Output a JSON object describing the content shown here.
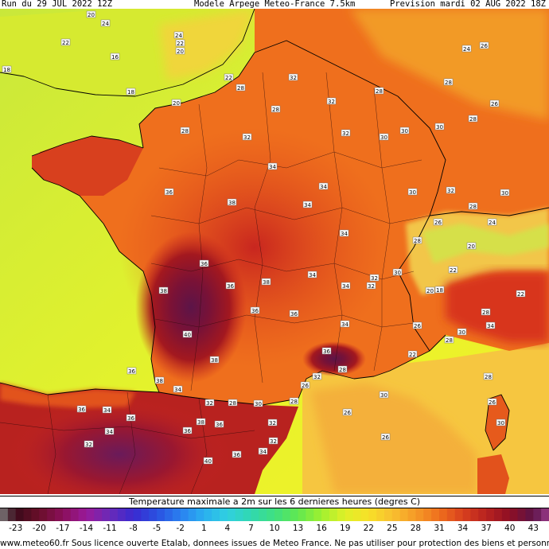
{
  "header": {
    "run": "Run du 29 JUL 2022 12Z",
    "model": "Modele Arpege Meteo-France 7.5km",
    "forecast": "Prevision mardi 02 AUG 2022 18Z"
  },
  "map": {
    "field": "temperature",
    "colors": {
      "sea": "#e8f428",
      "coast_sea": "#ccea3a",
      "warm_sea": "#f6c640",
      "land_mid": "#ef6f1d",
      "land_hot": "#c8261f",
      "land_very_hot": "#8e0f24",
      "land_extreme": "#5c1448",
      "land_cool": "#f29a26",
      "borders": "#000000"
    },
    "labels": [
      {
        "text": "20"
      },
      {
        "text": "24"
      },
      {
        "text": "22"
      },
      {
        "text": "16"
      },
      {
        "text": "18"
      },
      {
        "text": "24"
      },
      {
        "text": "22"
      },
      {
        "text": "20"
      },
      {
        "text": "24"
      },
      {
        "text": "26"
      },
      {
        "text": "22"
      },
      {
        "text": "28"
      },
      {
        "text": "18"
      },
      {
        "text": "28"
      },
      {
        "text": "20"
      },
      {
        "text": "28"
      },
      {
        "text": "28"
      },
      {
        "text": "32"
      },
      {
        "text": "32"
      },
      {
        "text": "26"
      },
      {
        "text": "28"
      },
      {
        "text": "30"
      },
      {
        "text": "30"
      },
      {
        "text": "28"
      },
      {
        "text": "32"
      },
      {
        "text": "32"
      },
      {
        "text": "30"
      },
      {
        "text": "34"
      },
      {
        "text": "34"
      },
      {
        "text": "36"
      },
      {
        "text": "38"
      },
      {
        "text": "34"
      },
      {
        "text": "34"
      },
      {
        "text": "30"
      },
      {
        "text": "32"
      },
      {
        "text": "30"
      },
      {
        "text": "28"
      },
      {
        "text": "26"
      },
      {
        "text": "24"
      },
      {
        "text": "36"
      },
      {
        "text": "36"
      },
      {
        "text": "38"
      },
      {
        "text": "36"
      },
      {
        "text": "34"
      },
      {
        "text": "34"
      },
      {
        "text": "32"
      },
      {
        "text": "30"
      },
      {
        "text": "20"
      },
      {
        "text": "22"
      },
      {
        "text": "18"
      },
      {
        "text": "40"
      },
      {
        "text": "38"
      },
      {
        "text": "38"
      },
      {
        "text": "36"
      },
      {
        "text": "36"
      },
      {
        "text": "34"
      },
      {
        "text": "32"
      },
      {
        "text": "28"
      },
      {
        "text": "26"
      },
      {
        "text": "22"
      },
      {
        "text": "20"
      },
      {
        "text": "28"
      },
      {
        "text": "28"
      },
      {
        "text": "30"
      },
      {
        "text": "34"
      },
      {
        "text": "36"
      },
      {
        "text": "38"
      },
      {
        "text": "34"
      },
      {
        "text": "32"
      },
      {
        "text": "28"
      },
      {
        "text": "30"
      },
      {
        "text": "32"
      },
      {
        "text": "28"
      },
      {
        "text": "26"
      },
      {
        "text": "32"
      },
      {
        "text": "36"
      },
      {
        "text": "34"
      },
      {
        "text": "36"
      },
      {
        "text": "34"
      },
      {
        "text": "32"
      },
      {
        "text": "38"
      },
      {
        "text": "36"
      },
      {
        "text": "36"
      },
      {
        "text": "40"
      },
      {
        "text": "36"
      },
      {
        "text": "34"
      },
      {
        "text": "32"
      },
      {
        "text": "26"
      },
      {
        "text": "26"
      },
      {
        "text": "28"
      },
      {
        "text": "30"
      },
      {
        "text": "22"
      },
      {
        "text": "26"
      },
      {
        "text": "30"
      },
      {
        "text": "28"
      }
    ]
  },
  "legend": {
    "title": "Temperature maximale a 2m sur les 6 dernieres heures (degres C)",
    "min_temp": -25,
    "max_temp": 45,
    "ticks": [
      "-23",
      "-20",
      "-17",
      "-14",
      "-11",
      "-8",
      "-5",
      "-2",
      "1",
      "4",
      "7",
      "10",
      "13",
      "16",
      "19",
      "22",
      "25",
      "28",
      "31",
      "34",
      "37",
      "40",
      "43"
    ],
    "tick_values": [
      -23,
      -20,
      -17,
      -14,
      -11,
      -8,
      -5,
      -2,
      1,
      4,
      7,
      10,
      13,
      16,
      19,
      22,
      25,
      28,
      31,
      34,
      37,
      40,
      43
    ]
  },
  "footer": {
    "text": "www.meteo60.fr Sous licence ouverte Etalab, donnees issues de Meteo France. Ne pas utiliser pour protection des biens et personnes"
  }
}
